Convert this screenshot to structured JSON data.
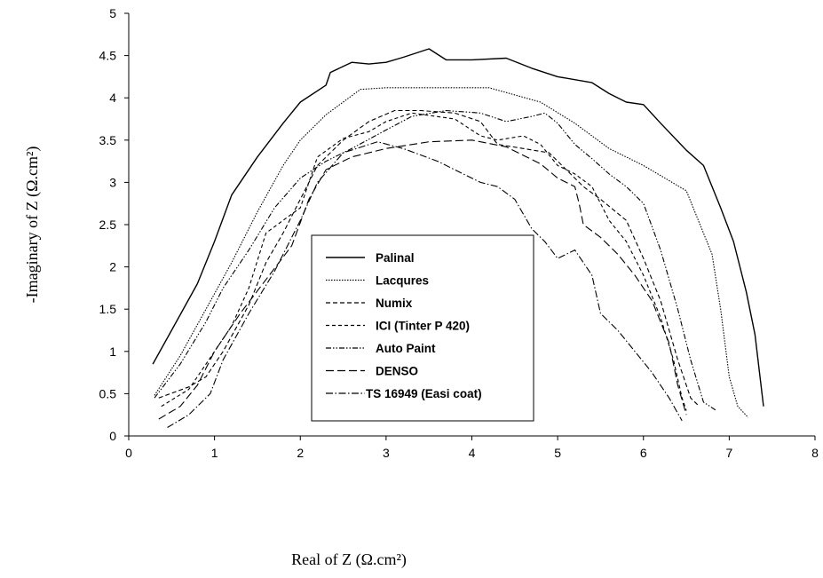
{
  "chart_data": {
    "type": "line",
    "title": "",
    "xlabel": "Real of Z (Ω.cm²)",
    "ylabel": "-Imaginary of Z (Ω.cm²)",
    "xlim": [
      0,
      8
    ],
    "ylim": [
      0,
      5
    ],
    "xticks": [
      "0",
      "1",
      "2",
      "3",
      "4",
      "5",
      "6",
      "7",
      "8"
    ],
    "yticks": [
      "0",
      "0.5",
      "1",
      "1.5",
      "2",
      "2.5",
      "3",
      "3.5",
      "4",
      "4.5",
      "5"
    ],
    "grid": false,
    "legend_position": "center",
    "series": [
      {
        "name": "Palinal",
        "dash": "",
        "points": [
          [
            0.28,
            0.85
          ],
          [
            0.5,
            1.25
          ],
          [
            0.8,
            1.8
          ],
          [
            1.0,
            2.3
          ],
          [
            1.2,
            2.85
          ],
          [
            1.5,
            3.3
          ],
          [
            1.8,
            3.7
          ],
          [
            2.0,
            3.95
          ],
          [
            2.3,
            4.15
          ],
          [
            2.35,
            4.3
          ],
          [
            2.6,
            4.42
          ],
          [
            2.8,
            4.4
          ],
          [
            3.0,
            4.42
          ],
          [
            3.2,
            4.48
          ],
          [
            3.5,
            4.58
          ],
          [
            3.7,
            4.45
          ],
          [
            4.0,
            4.45
          ],
          [
            4.4,
            4.47
          ],
          [
            4.7,
            4.35
          ],
          [
            5.0,
            4.25
          ],
          [
            5.4,
            4.18
          ],
          [
            5.6,
            4.05
          ],
          [
            5.8,
            3.95
          ],
          [
            6.0,
            3.92
          ],
          [
            6.2,
            3.7
          ],
          [
            6.5,
            3.38
          ],
          [
            6.7,
            3.2
          ],
          [
            6.9,
            2.7
          ],
          [
            7.05,
            2.3
          ],
          [
            7.2,
            1.7
          ],
          [
            7.3,
            1.2
          ],
          [
            7.4,
            0.35
          ]
        ]
      },
      {
        "name": "Lacqures",
        "dash": "1.5,1.5",
        "points": [
          [
            0.3,
            0.48
          ],
          [
            0.6,
            0.95
          ],
          [
            0.9,
            1.5
          ],
          [
            1.2,
            2.05
          ],
          [
            1.5,
            2.65
          ],
          [
            1.8,
            3.2
          ],
          [
            2.0,
            3.5
          ],
          [
            2.3,
            3.8
          ],
          [
            2.7,
            4.1
          ],
          [
            3.0,
            4.12
          ],
          [
            3.5,
            4.12
          ],
          [
            4.2,
            4.12
          ],
          [
            4.8,
            3.95
          ],
          [
            5.2,
            3.7
          ],
          [
            5.6,
            3.4
          ],
          [
            6.0,
            3.2
          ],
          [
            6.5,
            2.9
          ],
          [
            6.8,
            2.15
          ],
          [
            6.9,
            1.5
          ],
          [
            7.0,
            0.7
          ],
          [
            7.1,
            0.35
          ],
          [
            7.22,
            0.22
          ]
        ]
      },
      {
        "name": "Numix",
        "dash": "5,3",
        "points": [
          [
            0.35,
            0.45
          ],
          [
            0.7,
            0.58
          ],
          [
            0.9,
            0.7
          ],
          [
            1.1,
            1.0
          ],
          [
            1.4,
            1.55
          ],
          [
            1.6,
            2.05
          ],
          [
            1.8,
            2.4
          ],
          [
            2.0,
            2.8
          ],
          [
            2.2,
            3.2
          ],
          [
            2.5,
            3.5
          ],
          [
            2.8,
            3.72
          ],
          [
            3.1,
            3.85
          ],
          [
            3.4,
            3.85
          ],
          [
            3.8,
            3.82
          ],
          [
            4.1,
            3.72
          ],
          [
            4.3,
            3.45
          ],
          [
            4.6,
            3.4
          ],
          [
            4.9,
            3.35
          ],
          [
            5.1,
            3.15
          ],
          [
            5.3,
            2.95
          ],
          [
            5.5,
            2.8
          ],
          [
            5.8,
            2.55
          ],
          [
            6.0,
            2.1
          ],
          [
            6.2,
            1.6
          ],
          [
            6.4,
            0.9
          ],
          [
            6.55,
            0.45
          ],
          [
            6.65,
            0.35
          ]
        ]
      },
      {
        "name": "ICI (Tinter P 420)",
        "dash": "4,3",
        "points": [
          [
            0.38,
            0.35
          ],
          [
            0.7,
            0.55
          ],
          [
            0.9,
            0.85
          ],
          [
            1.2,
            1.3
          ],
          [
            1.4,
            1.75
          ],
          [
            1.6,
            2.4
          ],
          [
            1.8,
            2.55
          ],
          [
            2.0,
            2.7
          ],
          [
            2.2,
            3.3
          ],
          [
            2.5,
            3.52
          ],
          [
            2.8,
            3.6
          ],
          [
            3.0,
            3.72
          ],
          [
            3.3,
            3.82
          ],
          [
            3.8,
            3.75
          ],
          [
            4.1,
            3.55
          ],
          [
            4.3,
            3.5
          ],
          [
            4.6,
            3.55
          ],
          [
            4.8,
            3.45
          ],
          [
            5.0,
            3.2
          ],
          [
            5.2,
            3.1
          ],
          [
            5.4,
            2.95
          ],
          [
            5.6,
            2.55
          ],
          [
            5.8,
            2.3
          ],
          [
            6.0,
            1.9
          ],
          [
            6.2,
            1.4
          ],
          [
            6.35,
            0.9
          ],
          [
            6.45,
            0.45
          ],
          [
            6.5,
            0.3
          ]
        ]
      },
      {
        "name": "Auto Paint",
        "dash": "6,2,1.5,2,1.5,2",
        "points": [
          [
            0.3,
            0.45
          ],
          [
            0.6,
            0.85
          ],
          [
            0.9,
            1.35
          ],
          [
            1.1,
            1.75
          ],
          [
            1.4,
            2.2
          ],
          [
            1.7,
            2.7
          ],
          [
            2.0,
            3.05
          ],
          [
            2.3,
            3.25
          ],
          [
            2.6,
            3.4
          ],
          [
            3.0,
            3.62
          ],
          [
            3.3,
            3.78
          ],
          [
            3.7,
            3.85
          ],
          [
            4.1,
            3.82
          ],
          [
            4.4,
            3.72
          ],
          [
            4.7,
            3.78
          ],
          [
            4.85,
            3.82
          ],
          [
            5.0,
            3.7
          ],
          [
            5.2,
            3.45
          ],
          [
            5.4,
            3.28
          ],
          [
            5.6,
            3.1
          ],
          [
            5.8,
            2.95
          ],
          [
            6.0,
            2.75
          ],
          [
            6.2,
            2.2
          ],
          [
            6.4,
            1.5
          ],
          [
            6.55,
            0.9
          ],
          [
            6.7,
            0.4
          ],
          [
            6.85,
            0.3
          ]
        ]
      },
      {
        "name": "DENSO",
        "dash": "9,4",
        "points": [
          [
            0.35,
            0.2
          ],
          [
            0.6,
            0.35
          ],
          [
            0.8,
            0.6
          ],
          [
            1.0,
            1.0
          ],
          [
            1.3,
            1.45
          ],
          [
            1.6,
            1.85
          ],
          [
            1.9,
            2.25
          ],
          [
            2.1,
            2.8
          ],
          [
            2.3,
            3.15
          ],
          [
            2.6,
            3.3
          ],
          [
            3.0,
            3.4
          ],
          [
            3.5,
            3.48
          ],
          [
            4.0,
            3.5
          ],
          [
            4.4,
            3.42
          ],
          [
            4.8,
            3.22
          ],
          [
            5.0,
            3.05
          ],
          [
            5.2,
            2.95
          ],
          [
            5.25,
            2.75
          ],
          [
            5.3,
            2.5
          ],
          [
            5.5,
            2.35
          ],
          [
            5.7,
            2.15
          ],
          [
            5.9,
            1.9
          ],
          [
            6.1,
            1.6
          ],
          [
            6.3,
            1.1
          ],
          [
            6.4,
            0.6
          ],
          [
            6.5,
            0.25
          ]
        ]
      },
      {
        "name": "TS 16949 (Easi coat)",
        "dash": "8,2.5,1.5,2.5",
        "points": [
          [
            0.45,
            0.1
          ],
          [
            0.7,
            0.25
          ],
          [
            0.95,
            0.5
          ],
          [
            1.1,
            0.9
          ],
          [
            1.4,
            1.45
          ],
          [
            1.7,
            1.95
          ],
          [
            2.0,
            2.55
          ],
          [
            2.2,
            3.0
          ],
          [
            2.5,
            3.35
          ],
          [
            2.9,
            3.48
          ],
          [
            3.2,
            3.4
          ],
          [
            3.6,
            3.25
          ],
          [
            3.9,
            3.1
          ],
          [
            4.1,
            3.0
          ],
          [
            4.3,
            2.95
          ],
          [
            4.5,
            2.8
          ],
          [
            4.7,
            2.45
          ],
          [
            4.85,
            2.3
          ],
          [
            5.0,
            2.1
          ],
          [
            5.2,
            2.2
          ],
          [
            5.4,
            1.9
          ],
          [
            5.5,
            1.45
          ],
          [
            5.7,
            1.25
          ],
          [
            5.9,
            1.0
          ],
          [
            6.1,
            0.75
          ],
          [
            6.3,
            0.45
          ],
          [
            6.45,
            0.18
          ]
        ]
      }
    ]
  }
}
